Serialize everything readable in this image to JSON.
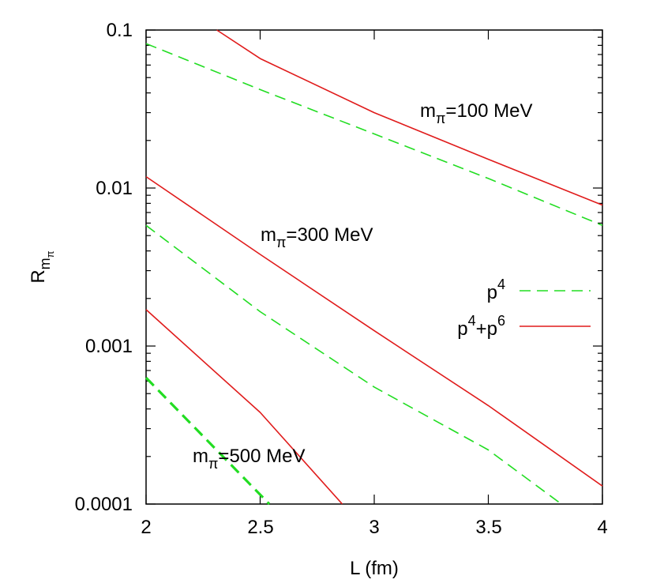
{
  "chart_data": {
    "type": "line",
    "xlabel": "L (fm)",
    "ylabel": {
      "main": "R",
      "sub": "m",
      "subsub": "π"
    },
    "xlim": [
      2,
      4
    ],
    "ylim": [
      0.0001,
      0.1
    ],
    "yscale": "log",
    "grid": false,
    "legend_placement": "right",
    "x_ticks": [
      "2",
      "2.5",
      "3",
      "3.5",
      "4"
    ],
    "y_ticks": [
      "0.1",
      "0.01",
      "0.001",
      "0.0001"
    ],
    "legend": [
      {
        "key": "p4",
        "base": "p",
        "sup": "4",
        "style": "dashed",
        "color": "#22dd22"
      },
      {
        "key": "p4p6",
        "base": "p",
        "sup": "4",
        "mid": "+p",
        "sup2": "6",
        "style": "solid",
        "color": "#e01b1b"
      }
    ],
    "annotations": [
      {
        "pre": "m",
        "sub": "π",
        "post": "=100 MeV"
      },
      {
        "pre": "m",
        "sub": "π",
        "post": "=300 MeV"
      },
      {
        "pre": "m",
        "sub": "π",
        "post": "=500 MeV"
      }
    ],
    "series": [
      {
        "legend": "p4",
        "mass": "100 MeV",
        "x": [
          2.0,
          2.5,
          3.0,
          3.5,
          4.0
        ],
        "y": [
          0.082,
          0.042,
          0.022,
          0.0115,
          0.0058
        ]
      },
      {
        "legend": "p4p6",
        "mass": "100 MeV",
        "x": [
          2.31,
          2.5,
          3.0,
          3.5,
          4.0
        ],
        "y": [
          0.1,
          0.066,
          0.03,
          0.0152,
          0.0078
        ]
      },
      {
        "legend": "p4",
        "mass": "300 MeV",
        "x": [
          2.0,
          2.5,
          3.0,
          3.5,
          3.82
        ],
        "y": [
          0.0058,
          0.00165,
          0.00055,
          0.00022,
          0.0001
        ]
      },
      {
        "legend": "p4p6",
        "mass": "300 MeV",
        "x": [
          2.0,
          2.5,
          3.0,
          3.5,
          4.0
        ],
        "y": [
          0.0118,
          0.0038,
          0.00125,
          0.00042,
          0.00013
        ]
      },
      {
        "legend": "p4",
        "mass": "500 MeV",
        "x": [
          2.0,
          2.54
        ],
        "y": [
          0.00063,
          0.0001
        ]
      },
      {
        "legend": "p4p6",
        "mass": "500 MeV",
        "x": [
          2.0,
          2.5,
          2.86
        ],
        "y": [
          0.0017,
          0.00038,
          0.0001
        ]
      }
    ]
  }
}
